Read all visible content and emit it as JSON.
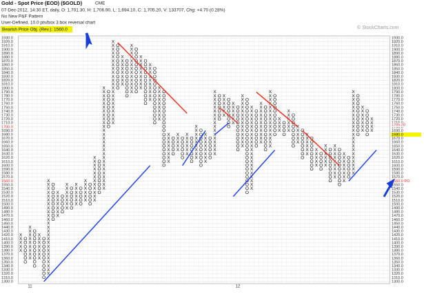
{
  "chart_data": {
    "type": "point-figure",
    "title": "Gold - Spot Price (EOD) ($GOLD)",
    "exchange": "CME",
    "quote": "07-Dec-2012, 14:30 ET, daily, O: 1,701.30, H: 1,706.90, L: 1,694.10, C: 1,705.20, V: 133707, Chg: +4.70 (0.28%)",
    "pattern": "No New P&F Pattern",
    "settings": "User-Defined, 10.0 pts/box 3 box reversal chart",
    "objective": "Bearish Price Obj. (Rev.): 1560.0",
    "credit": "© StockCharts.com",
    "box_size": 10,
    "ylim": [
      1300,
      1930
    ],
    "yticks": [
      {
        "value": 1300,
        "label": "1300.0"
      },
      {
        "value": 1310,
        "label": "1310.0"
      },
      {
        "value": 1320,
        "label": "1320.0"
      },
      {
        "value": 1330,
        "label": "1330.0"
      },
      {
        "value": 1340,
        "label": "1340.0"
      },
      {
        "value": 1350,
        "label": "1350.0"
      },
      {
        "value": 1360,
        "label": "1360.0"
      },
      {
        "value": 1370,
        "label": "1370.0"
      },
      {
        "value": 1380,
        "label": "1380.0"
      },
      {
        "value": 1390,
        "label": "1390.0"
      },
      {
        "value": 1400,
        "label": "1400.0"
      },
      {
        "value": 1410,
        "label": "1410.0"
      },
      {
        "value": 1420,
        "label": "1420.0"
      },
      {
        "value": 1430,
        "label": "1430.0"
      },
      {
        "value": 1440,
        "label": "1440.0"
      },
      {
        "value": 1450,
        "label": "1450.0"
      },
      {
        "value": 1460,
        "label": "1460.0"
      },
      {
        "value": 1470,
        "label": "1470.0"
      },
      {
        "value": 1480,
        "label": "1480.0"
      },
      {
        "value": 1490,
        "label": "1490.0"
      },
      {
        "value": 1500,
        "label": "1500.0"
      },
      {
        "value": 1510,
        "label": "1510.0"
      },
      {
        "value": 1520,
        "label": "1520.0"
      },
      {
        "value": 1530,
        "label": "1530.0"
      },
      {
        "value": 1540,
        "label": "1540.0"
      },
      {
        "value": 1550,
        "label": "1550.0"
      },
      {
        "value": 1560,
        "label": "1560.0"
      },
      {
        "value": 1570,
        "label": "1570.0"
      },
      {
        "value": 1580,
        "label": "1580.0"
      },
      {
        "value": 1590,
        "label": "1590.0"
      },
      {
        "value": 1600,
        "label": "1600.0"
      },
      {
        "value": 1610,
        "label": "1610.0"
      },
      {
        "value": 1620,
        "label": "1620.0"
      },
      {
        "value": 1630,
        "label": "1630.0"
      },
      {
        "value": 1640,
        "label": "1640.0"
      },
      {
        "value": 1650,
        "label": "1650.0"
      },
      {
        "value": 1660,
        "label": "1660.0"
      },
      {
        "value": 1670,
        "label": "1670.0"
      },
      {
        "value": 1680,
        "label": "1680.0"
      },
      {
        "value": 1690,
        "label": "1690.0"
      },
      {
        "value": 1700,
        "label": "1700.0"
      },
      {
        "value": 1710,
        "label": "1710.0"
      },
      {
        "value": 1720,
        "label": "1720.0"
      },
      {
        "value": 1730,
        "label": "1730.0"
      },
      {
        "value": 1740,
        "label": "1740.0"
      },
      {
        "value": 1750,
        "label": "1750.0"
      },
      {
        "value": 1760,
        "label": "1760.0"
      },
      {
        "value": 1770,
        "label": "1770.0"
      },
      {
        "value": 1780,
        "label": "1780.0"
      },
      {
        "value": 1790,
        "label": "1790.0"
      },
      {
        "value": 1800,
        "label": "1800.0"
      },
      {
        "value": 1810,
        "label": "1810.0"
      },
      {
        "value": 1820,
        "label": "1820.0"
      },
      {
        "value": 1830,
        "label": "1830.0"
      },
      {
        "value": 1840,
        "label": "1840.0"
      },
      {
        "value": 1850,
        "label": "1850.0"
      },
      {
        "value": 1860,
        "label": "1860.0"
      },
      {
        "value": 1870,
        "label": "1870.0"
      },
      {
        "value": 1880,
        "label": "1880.0"
      },
      {
        "value": 1890,
        "label": "1890.0"
      },
      {
        "value": 1900,
        "label": "1900.0"
      },
      {
        "value": 1910,
        "label": "1910.0"
      },
      {
        "value": 1920,
        "label": "1920.0"
      },
      {
        "value": 1930,
        "label": "1930.0"
      }
    ],
    "left_markers": [
      {
        "value": 1700,
        "label": "1700.0",
        "color": "#e03030"
      },
      {
        "value": 1560,
        "label": "1560.0",
        "color": "#e03030"
      }
    ],
    "right_markers": [
      {
        "value": 1705.2,
        "label": "1705.20",
        "color": "#e03030"
      },
      {
        "value": 1680,
        "label": "1680.0",
        "background": "#f5f500"
      },
      {
        "value": 1560,
        "label": "1560.0 PO",
        "color": "#e03030"
      }
    ],
    "x_labels": [
      {
        "column": 2,
        "label": "11"
      },
      {
        "column": 47,
        "label": "12"
      }
    ],
    "columns": [
      {
        "kind": "X",
        "low": 1380,
        "high": 1420
      },
      {
        "kind": "O",
        "low": 1350,
        "high": 1410
      },
      {
        "kind": "X",
        "low": 1360,
        "high": 1440
      },
      {
        "kind": "O",
        "low": 1340,
        "high": 1430
      },
      {
        "kind": "X",
        "low": 1360,
        "high": 1420
      },
      {
        "kind": "O",
        "low": 1310,
        "high": 1410
      },
      {
        "kind": "X",
        "low": 1320,
        "high": 1560
      },
      {
        "kind": "O",
        "low": 1460,
        "high": 1550
      },
      {
        "kind": "X",
        "low": 1470,
        "high": 1530
      },
      {
        "kind": "O",
        "low": 1480,
        "high": 1520
      },
      {
        "kind": "X",
        "low": 1490,
        "high": 1550
      },
      {
        "kind": "O",
        "low": 1490,
        "high": 1540
      },
      {
        "kind": "X",
        "low": 1500,
        "high": 1550
      },
      {
        "kind": "O",
        "low": 1500,
        "high": 1540
      },
      {
        "kind": "X",
        "low": 1510,
        "high": 1560
      },
      {
        "kind": "O",
        "low": 1500,
        "high": 1550
      },
      {
        "kind": "X",
        "low": 1510,
        "high": 1620
      },
      {
        "kind": "O",
        "low": 1530,
        "high": 1610
      },
      {
        "kind": "X",
        "low": 1540,
        "high": 1800
      },
      {
        "kind": "O",
        "low": 1700,
        "high": 1790
      },
      {
        "kind": "X",
        "low": 1710,
        "high": 1920
      },
      {
        "kind": "O",
        "low": 1800,
        "high": 1910
      },
      {
        "kind": "X",
        "low": 1810,
        "high": 1880
      },
      {
        "kind": "O",
        "low": 1780,
        "high": 1870
      },
      {
        "kind": "X",
        "low": 1790,
        "high": 1910
      },
      {
        "kind": "O",
        "low": 1790,
        "high": 1900
      },
      {
        "kind": "X",
        "low": 1800,
        "high": 1880
      },
      {
        "kind": "O",
        "low": 1760,
        "high": 1870
      },
      {
        "kind": "X",
        "low": 1770,
        "high": 1860
      },
      {
        "kind": "O",
        "low": 1710,
        "high": 1850
      },
      {
        "kind": "X",
        "low": 1720,
        "high": 1800
      },
      {
        "kind": "O",
        "low": 1600,
        "high": 1790
      },
      {
        "kind": "X",
        "low": 1610,
        "high": 1680
      },
      {
        "kind": "O",
        "low": 1630,
        "high": 1670
      },
      {
        "kind": "X",
        "low": 1640,
        "high": 1680
      },
      {
        "kind": "O",
        "low": 1620,
        "high": 1670
      },
      {
        "kind": "X",
        "low": 1630,
        "high": 1680
      },
      {
        "kind": "O",
        "low": 1610,
        "high": 1670
      },
      {
        "kind": "X",
        "low": 1620,
        "high": 1700
      },
      {
        "kind": "O",
        "low": 1600,
        "high": 1690
      },
      {
        "kind": "X",
        "low": 1610,
        "high": 1680
      },
      {
        "kind": "O",
        "low": 1620,
        "high": 1670
      },
      {
        "kind": "X",
        "low": 1630,
        "high": 1790
      },
      {
        "kind": "O",
        "low": 1720,
        "high": 1780
      },
      {
        "kind": "X",
        "low": 1730,
        "high": 1780
      },
      {
        "kind": "O",
        "low": 1700,
        "high": 1770
      },
      {
        "kind": "X",
        "low": 1710,
        "high": 1760
      },
      {
        "kind": "O",
        "low": 1640,
        "high": 1750
      },
      {
        "kind": "X",
        "low": 1650,
        "high": 1780
      },
      {
        "kind": "O",
        "low": 1530,
        "high": 1770
      },
      {
        "kind": "X",
        "low": 1540,
        "high": 1750
      },
      {
        "kind": "O",
        "low": 1650,
        "high": 1740
      },
      {
        "kind": "X",
        "low": 1660,
        "high": 1760
      },
      {
        "kind": "O",
        "low": 1640,
        "high": 1750
      },
      {
        "kind": "X",
        "low": 1650,
        "high": 1790
      },
      {
        "kind": "O",
        "low": 1680,
        "high": 1780
      },
      {
        "kind": "X",
        "low": 1690,
        "high": 1720
      },
      {
        "kind": "O",
        "low": 1680,
        "high": 1710
      },
      {
        "kind": "X",
        "low": 1690,
        "high": 1740
      },
      {
        "kind": "O",
        "low": 1650,
        "high": 1730
      },
      {
        "kind": "X",
        "low": 1660,
        "high": 1700
      },
      {
        "kind": "O",
        "low": 1620,
        "high": 1690
      },
      {
        "kind": "X",
        "low": 1630,
        "high": 1680
      },
      {
        "kind": "O",
        "low": 1590,
        "high": 1670
      },
      {
        "kind": "X",
        "low": 1600,
        "high": 1640
      },
      {
        "kind": "O",
        "low": 1590,
        "high": 1630
      },
      {
        "kind": "X",
        "low": 1600,
        "high": 1650
      },
      {
        "kind": "O",
        "low": 1560,
        "high": 1640
      },
      {
        "kind": "X",
        "low": 1570,
        "high": 1650
      },
      {
        "kind": "O",
        "low": 1550,
        "high": 1640
      },
      {
        "kind": "X",
        "low": 1560,
        "high": 1630
      },
      {
        "kind": "O",
        "low": 1570,
        "high": 1620
      },
      {
        "kind": "X",
        "low": 1580,
        "high": 1790
      },
      {
        "kind": "O",
        "low": 1680,
        "high": 1780
      },
      {
        "kind": "X",
        "low": 1690,
        "high": 1750
      },
      {
        "kind": "O",
        "low": 1680,
        "high": 1740
      },
      {
        "kind": "X",
        "low": 1690,
        "high": 1720
      }
    ],
    "trendlines": [
      {
        "color": "#ee3322",
        "from": [
          21,
          1918
        ],
        "to": [
          36,
          1735
        ]
      },
      {
        "color": "#ee3322",
        "from": [
          43,
          1750
        ],
        "to": [
          47,
          1710
        ]
      },
      {
        "color": "#ee3322",
        "from": [
          51,
          1790
        ],
        "to": [
          60,
          1700
        ]
      },
      {
        "color": "#ee3322",
        "from": [
          61,
          1690
        ],
        "to": [
          69,
          1600
        ]
      },
      {
        "color": "#2244ee",
        "from": [
          5,
          1300
        ],
        "to": [
          28,
          1600
        ]
      },
      {
        "color": "#2244ee",
        "from": [
          35,
          1600
        ],
        "to": [
          40,
          1690
        ]
      },
      {
        "color": "#2244ee",
        "from": [
          42,
          1680
        ],
        "to": [
          45,
          1710
        ]
      },
      {
        "color": "#2244ee",
        "from": [
          46,
          1520
        ],
        "to": [
          55,
          1640
        ]
      },
      {
        "color": "#2244ee",
        "from": [
          71,
          1560
        ],
        "to": [
          77,
          1640
        ]
      }
    ]
  }
}
